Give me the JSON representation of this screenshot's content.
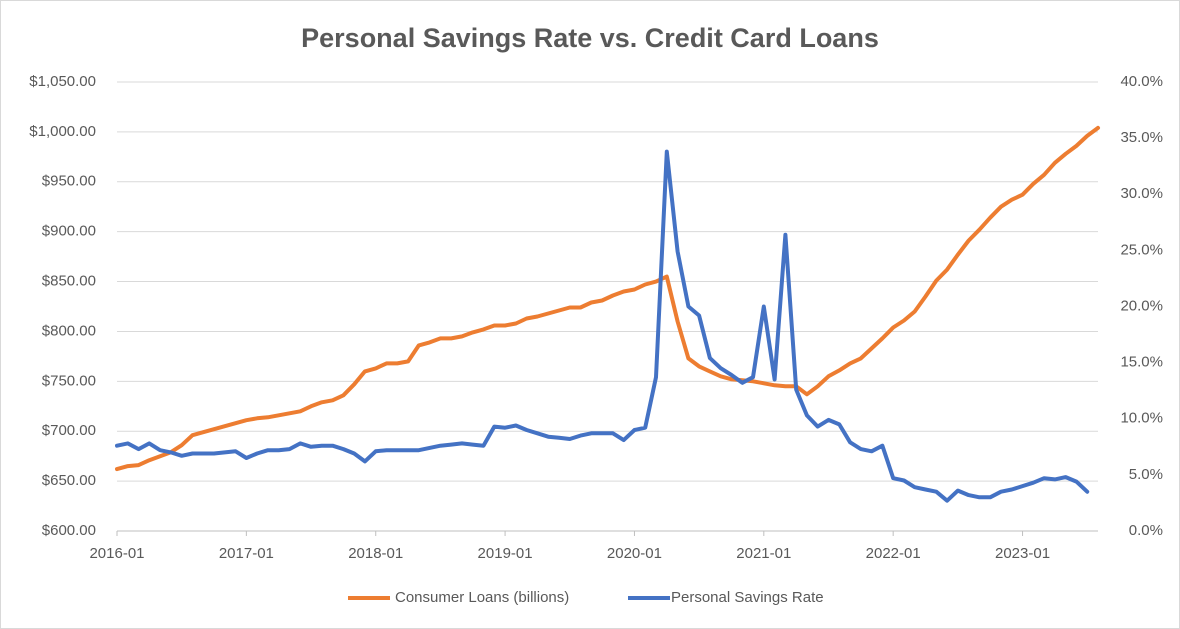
{
  "chart_data": {
    "type": "line",
    "title": "Personal Savings Rate vs. Credit Card Loans",
    "categories": [
      "2016-01",
      null,
      null,
      null,
      null,
      null,
      null,
      null,
      null,
      null,
      null,
      null,
      "2017-01",
      null,
      null,
      null,
      null,
      null,
      null,
      null,
      null,
      null,
      null,
      null,
      "2018-01",
      null,
      null,
      null,
      null,
      null,
      null,
      null,
      null,
      null,
      null,
      null,
      "2019-01",
      null,
      null,
      null,
      null,
      null,
      null,
      null,
      null,
      null,
      null,
      null,
      "2020-01",
      null,
      null,
      null,
      null,
      null,
      null,
      null,
      null,
      null,
      null,
      null,
      "2021-01",
      null,
      null,
      null,
      null,
      null,
      null,
      null,
      null,
      null,
      null,
      null,
      "2022-01",
      null,
      null,
      null,
      null,
      null,
      null,
      null,
      null,
      null,
      null,
      null,
      "2023-01",
      null,
      null,
      null,
      null,
      null,
      null,
      null
    ],
    "series": [
      {
        "name": "Consumer Loans (billions)",
        "color": "#ed7d31",
        "values": [
          662,
          665,
          666,
          671,
          675,
          679,
          686,
          696,
          699,
          702,
          705,
          708,
          711,
          713,
          714,
          716,
          718,
          720,
          725,
          729,
          731,
          736,
          747,
          760,
          763,
          768,
          768,
          770,
          786,
          789,
          793,
          793,
          795,
          799,
          802,
          806,
          806,
          808,
          813,
          815,
          818,
          821,
          824,
          824,
          829,
          831,
          836,
          840,
          842,
          847,
          850,
          855,
          810,
          773,
          765,
          760,
          755,
          752,
          751,
          750,
          748,
          746,
          745,
          745,
          737,
          745,
          755,
          761,
          768,
          773,
          783,
          793,
          804,
          811,
          820,
          835,
          851,
          862,
          877,
          891,
          902,
          914,
          925,
          932,
          937,
          948,
          957,
          969,
          978,
          986,
          996,
          1004
        ]
      },
      {
        "name": "Personal Savings Rate",
        "color": "#4472c4",
        "axis": "y2",
        "values": [
          7.6,
          7.8,
          7.3,
          7.8,
          7.2,
          7.0,
          6.7,
          6.9,
          6.9,
          6.9,
          7.0,
          7.1,
          6.5,
          6.9,
          7.2,
          7.2,
          7.3,
          7.8,
          7.5,
          7.6,
          7.6,
          7.3,
          6.9,
          6.2,
          7.1,
          7.2,
          7.2,
          7.2,
          7.2,
          7.4,
          7.6,
          7.7,
          7.8,
          7.7,
          7.6,
          9.3,
          9.2,
          9.4,
          9.0,
          8.7,
          8.4,
          8.3,
          8.2,
          8.5,
          8.7,
          8.7,
          8.7,
          8.1,
          9.0,
          9.2,
          13.7,
          33.8,
          24.9,
          20.0,
          19.2,
          15.4,
          14.5,
          13.9,
          13.2,
          13.7,
          20.0,
          13.5,
          26.4,
          12.6,
          10.3,
          9.3,
          9.9,
          9.5,
          7.9,
          7.3,
          7.1,
          7.6,
          4.7,
          4.5,
          3.9,
          3.7,
          3.5,
          2.7,
          3.6,
          3.2,
          3.0,
          3.0,
          3.5,
          3.7,
          4.0,
          4.3,
          4.7,
          4.6,
          4.8,
          4.4,
          3.5,
          null
        ]
      }
    ],
    "ylim": [
      600,
      1050
    ],
    "yticks": [
      {
        "value": 600,
        "label": "$600.00"
      },
      {
        "value": 650,
        "label": "$650.00"
      },
      {
        "value": 700,
        "label": "$700.00"
      },
      {
        "value": 750,
        "label": "$750.00"
      },
      {
        "value": 800,
        "label": "$800.00"
      },
      {
        "value": 850,
        "label": "$850.00"
      },
      {
        "value": 900,
        "label": "$900.00"
      },
      {
        "value": 950,
        "label": "$950.00"
      },
      {
        "value": 1000,
        "label": "$1,000.00"
      },
      {
        "value": 1050,
        "label": "$1,050.00"
      }
    ],
    "y2lim": [
      0,
      40
    ],
    "y2ticks": [
      {
        "value": 0,
        "label": "0.0%"
      },
      {
        "value": 5,
        "label": "5.0%"
      },
      {
        "value": 10,
        "label": "10.0%"
      },
      {
        "value": 15,
        "label": "15.0%"
      },
      {
        "value": 20,
        "label": "20.0%"
      },
      {
        "value": 25,
        "label": "25.0%"
      },
      {
        "value": 30,
        "label": "30.0%"
      },
      {
        "value": 35,
        "label": "35.0%"
      },
      {
        "value": 40,
        "label": "40.0%"
      }
    ],
    "grid": true,
    "legend": "bottom"
  }
}
